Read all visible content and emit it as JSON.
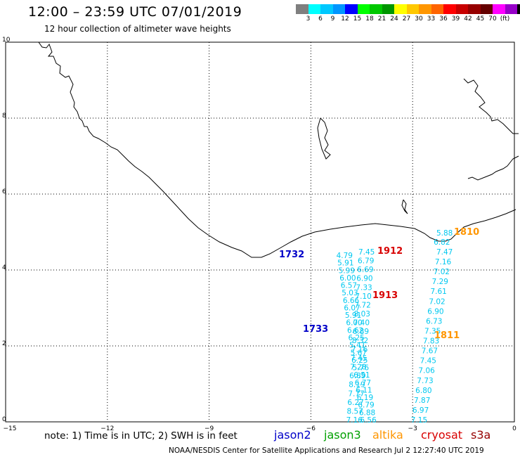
{
  "header": {
    "title": "12:00 – 23:59 UTC 07/01/2019",
    "subtitle": "12 hour collection of altimeter wave heights"
  },
  "colorbar": {
    "swatches": [
      "#7f7f7f",
      "#00ffff",
      "#00c8ff",
      "#0096ff",
      "#0000ff",
      "#00ff00",
      "#00c800",
      "#009600",
      "#ffff00",
      "#ffc800",
      "#ff9600",
      "#ff6400",
      "#ff0000",
      "#c80000",
      "#960000",
      "#640000",
      "#ff00ff",
      "#9600c8",
      "#000000"
    ],
    "labels": [
      "3",
      "6",
      "9",
      "12",
      "15",
      "18",
      "21",
      "24",
      "27",
      "30",
      "33",
      "36",
      "39",
      "42",
      "45",
      "70",
      "(ft)"
    ]
  },
  "axes": {
    "x_ticks": [
      "−15",
      "−12",
      "−9",
      "−6",
      "−3",
      "0"
    ],
    "y_ticks": [
      "0",
      "2",
      "4",
      "6",
      "8",
      "10"
    ],
    "xlim": [
      -15,
      0
    ],
    "ylim": [
      0,
      10
    ],
    "grid": true
  },
  "colors": {
    "wave_value": "#00c8f0",
    "jason2": "#0000c8",
    "jason3": "#00a000",
    "altika": "#ff9600",
    "cryosat": "#d80000",
    "s3a": "#960000"
  },
  "tracks": [
    {
      "name": "track-a",
      "values": [
        "4.79",
        "5.91",
        "5.99",
        "6.00",
        "6.57",
        "5.03",
        "6.66",
        "6.07",
        "5.91",
        "6.00",
        "6.62",
        "6.25",
        "5.41",
        "5.67",
        "6.25",
        "5.76",
        "6.51",
        "6.77",
        "6.11",
        "6.19",
        "6.79",
        "6.88",
        "6.56"
      ],
      "x_start": -5.25,
      "x_end": -4.55
    },
    {
      "name": "track-b",
      "values": [
        "7.45",
        "6.79",
        "6.69",
        "6.90",
        "7.33",
        "7.10",
        "7.72",
        "8.03",
        "7.40",
        "6.89",
        "8.32",
        "7.16",
        "7.45",
        "7.28",
        "6.89",
        "8.19",
        "7.77",
        "6.27",
        "8.57",
        "7.16"
      ],
      "x_start": -4.6,
      "x_end": -4.96
    },
    {
      "name": "track-c",
      "values": [
        "7.47",
        "7.16",
        "7.02",
        "7.29",
        "7.61",
        "7.02",
        "6.90",
        "6.73",
        "7.35",
        "7.83",
        "7.67",
        "7.45",
        "7.06",
        "7.73",
        "6.80",
        "7.87",
        "6.97",
        "7.15"
      ],
      "x_start": -2.3,
      "x_end": -3.05
    },
    {
      "name": "track-d",
      "values": [
        "5.88",
        "6.82"
      ],
      "x_start": -2.3,
      "x_end": -2.38
    }
  ],
  "pass_labels": [
    {
      "text": "1732",
      "sat": "jason2",
      "x": -11.3,
      "y": 4.35
    },
    {
      "text": "1733",
      "sat": "jason2",
      "x": -9.15,
      "y": 2.4
    },
    {
      "text": "1912",
      "sat": "cryosat",
      "x": -8.1,
      "y": 4.45
    },
    {
      "text": "1913",
      "sat": "cryosat",
      "x": -8.1,
      "y": 3.28
    },
    {
      "text": "1810",
      "sat": "altika",
      "x": -6.8,
      "y": 4.82
    },
    {
      "text": "1811",
      "sat": "altika",
      "x": -6.9,
      "y": 2.18
    }
  ],
  "footer": {
    "note": "note:  1) Time is in UTC;  2) SWH is in feet",
    "satellites": [
      {
        "label": "jason2",
        "key": "jason2"
      },
      {
        "label": "jason3",
        "key": "jason3"
      },
      {
        "label": "altika",
        "key": "altika"
      },
      {
        "label": "cryosat",
        "key": "cryosat"
      },
      {
        "label": "s3a",
        "key": "s3a"
      }
    ],
    "credit": "NOAA/NESDIS Center for Satellite Applications and Research   Jul  2 12:27:40 UTC 2019"
  }
}
